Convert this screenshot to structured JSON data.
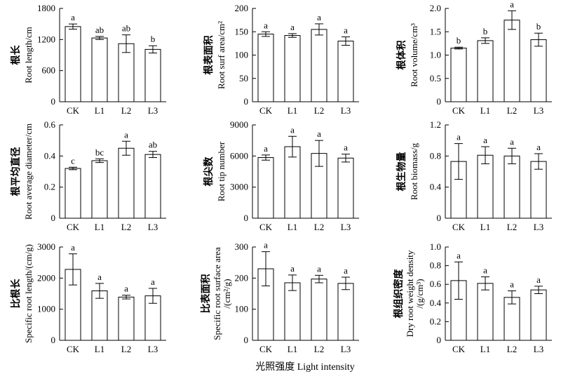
{
  "x_axis_label": "光照强度 Light intensity",
  "chart_data": [
    {
      "type": "bar",
      "ylabel_cn": "根长",
      "ylabel_en": "Root length/cm",
      "categories": [
        "CK",
        "L1",
        "L2",
        "L3"
      ],
      "values": [
        1450,
        1230,
        1120,
        1010
      ],
      "errors": [
        50,
        30,
        170,
        70
      ],
      "letters": [
        "a",
        "ab",
        "ab",
        "b"
      ],
      "ylim": [
        0,
        1800
      ],
      "yticks": [
        0,
        600,
        1200,
        1800
      ]
    },
    {
      "type": "bar",
      "ylabel_cn": "根表面积",
      "ylabel_en": "Root surf area/cm²",
      "categories": [
        "CK",
        "L1",
        "L2",
        "L3"
      ],
      "values": [
        145,
        142,
        155,
        130
      ],
      "errors": [
        5,
        4,
        12,
        9
      ],
      "letters": [
        "a",
        "a",
        "a",
        "a"
      ],
      "ylim": [
        0,
        200
      ],
      "yticks": [
        0,
        50,
        100,
        150,
        200
      ]
    },
    {
      "type": "bar",
      "ylabel_cn": "根体积",
      "ylabel_en": "Root volume/cm³",
      "categories": [
        "CK",
        "L1",
        "L2",
        "L3"
      ],
      "values": [
        1.15,
        1.31,
        1.75,
        1.33
      ],
      "errors": [
        0.02,
        0.06,
        0.2,
        0.14
      ],
      "letters": [
        "b",
        "b",
        "a",
        "b"
      ],
      "ylim": [
        0,
        2.0
      ],
      "yticks": [
        0,
        0.5,
        1.0,
        1.5,
        2.0
      ],
      "ytick_labels": [
        "0",
        "0.5",
        "1.0",
        "1.5",
        "2.0"
      ]
    },
    {
      "type": "bar",
      "ylabel_cn": "根平均直径",
      "ylabel_en": "Root average diameter/cm",
      "categories": [
        "CK",
        "L1",
        "L2",
        "L3"
      ],
      "values": [
        0.32,
        0.37,
        0.45,
        0.41
      ],
      "errors": [
        0.008,
        0.012,
        0.045,
        0.02
      ],
      "letters": [
        "c",
        "bc",
        "a",
        "ab"
      ],
      "ylim": [
        0,
        0.6
      ],
      "yticks": [
        0,
        0.2,
        0.4,
        0.6
      ],
      "ytick_labels": [
        "0",
        "0.2",
        "0.4",
        "0.6"
      ]
    },
    {
      "type": "bar",
      "ylabel_cn": "根尖数",
      "ylabel_en": "Root tip number",
      "categories": [
        "CK",
        "L1",
        "L2",
        "L3"
      ],
      "values": [
        5850,
        6900,
        6250,
        5800
      ],
      "errors": [
        250,
        1000,
        1250,
        380
      ],
      "letters": [
        "a",
        "a",
        "a",
        "a"
      ],
      "ylim": [
        0,
        9000
      ],
      "yticks": [
        0,
        3000,
        6000,
        9000
      ]
    },
    {
      "type": "bar",
      "ylabel_cn": "根生物量",
      "ylabel_en": "Root biomass/g",
      "categories": [
        "CK",
        "L1",
        "L2",
        "L3"
      ],
      "values": [
        0.73,
        0.81,
        0.8,
        0.73
      ],
      "errors": [
        0.23,
        0.11,
        0.1,
        0.1
      ],
      "letters": [
        "a",
        "a",
        "a",
        "a"
      ],
      "ylim": [
        0,
        1.2
      ],
      "yticks": [
        0,
        0.4,
        0.8,
        1.2
      ],
      "ytick_labels": [
        "0",
        "0.4",
        "0.8",
        "1.2"
      ]
    },
    {
      "type": "bar",
      "ylabel_cn": "比根长",
      "ylabel_en": "Specific root length/(cm/g)",
      "categories": [
        "CK",
        "L1",
        "L2",
        "L3"
      ],
      "values": [
        2280,
        1590,
        1390,
        1430
      ],
      "errors": [
        500,
        240,
        60,
        240
      ],
      "letters": [
        "a",
        "a",
        "a",
        "a"
      ],
      "ylim": [
        0,
        3000
      ],
      "yticks": [
        0,
        1000,
        2000,
        3000
      ]
    },
    {
      "type": "bar",
      "ylabel_cn": "比表面积",
      "ylabel_en": "Specific root surface area",
      "ylabel_en2": "/(cm²/g)",
      "categories": [
        "CK",
        "L1",
        "L2",
        "L3"
      ],
      "values": [
        230,
        185,
        197,
        183
      ],
      "errors": [
        55,
        25,
        12,
        20
      ],
      "letters": [
        "a",
        "a",
        "a",
        "a"
      ],
      "ylim": [
        0,
        300
      ],
      "yticks": [
        0,
        100,
        200,
        300
      ]
    },
    {
      "type": "bar",
      "ylabel_cn": "根组织密度",
      "ylabel_en": "Dry root weight density",
      "ylabel_en2": "/(g/cm³)",
      "categories": [
        "CK",
        "L1",
        "L2",
        "L3"
      ],
      "values": [
        0.64,
        0.61,
        0.46,
        0.54
      ],
      "errors": [
        0.2,
        0.07,
        0.07,
        0.04
      ],
      "letters": [
        "a",
        "a",
        "a",
        "a"
      ],
      "ylim": [
        0,
        1.0
      ],
      "yticks": [
        0,
        0.2,
        0.4,
        0.6,
        0.8,
        1.0
      ],
      "ytick_labels": [
        "0",
        "0.2",
        "0.4",
        "0.6",
        "0.8",
        "1.0"
      ]
    }
  ]
}
